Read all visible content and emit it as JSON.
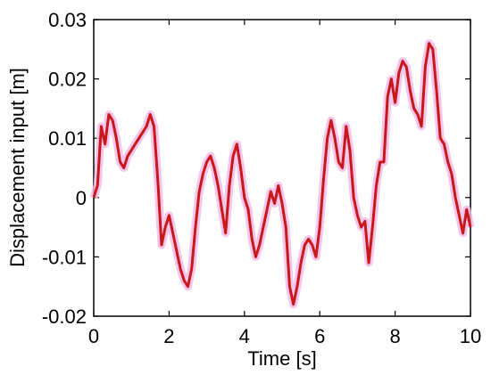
{
  "chart_data": {
    "type": "line",
    "x_label": "Time [s]",
    "y_label": "Displacement input [m]",
    "x": [
      0,
      0.1,
      0.2,
      0.3,
      0.4,
      0.5,
      0.6,
      0.7,
      0.8,
      0.9,
      1,
      1.1,
      1.2,
      1.3,
      1.4,
      1.5,
      1.6,
      1.7,
      1.8,
      1.9,
      2,
      2.1,
      2.2,
      2.3,
      2.4,
      2.5,
      2.6,
      2.7,
      2.8,
      2.9,
      3,
      3.1,
      3.2,
      3.3,
      3.4,
      3.5,
      3.6,
      3.7,
      3.8,
      3.9,
      4,
      4.1,
      4.2,
      4.3,
      4.4,
      4.5,
      4.6,
      4.7,
      4.8,
      4.9,
      5,
      5.1,
      5.2,
      5.3,
      5.4,
      5.5,
      5.6,
      5.7,
      5.8,
      5.9,
      6,
      6.1,
      6.2,
      6.3,
      6.4,
      6.5,
      6.6,
      6.7,
      6.8,
      6.9,
      7,
      7.1,
      7.2,
      7.3,
      7.4,
      7.5,
      7.6,
      7.7,
      7.8,
      7.9,
      8,
      8.1,
      8.2,
      8.3,
      8.4,
      8.5,
      8.6,
      8.7,
      8.8,
      8.9,
      9,
      9.1,
      9.2,
      9.3,
      9.4,
      9.5,
      9.6,
      9.7,
      9.8,
      9.9,
      10
    ],
    "series": [
      {
        "color": "#c8181a",
        "values": [
          0,
          0.002,
          0.012,
          0.009,
          0.014,
          0.013,
          0.01,
          0.006,
          0.005,
          0.007,
          0.008,
          0.009,
          0.01,
          0.011,
          0.012,
          0.014,
          0.012,
          0.003,
          -0.008,
          -0.005,
          -0.003,
          -0.006,
          -0.009,
          -0.012,
          -0.014,
          -0.015,
          -0.012,
          -0.005,
          0.001,
          0.004,
          0.006,
          0.007,
          0.005,
          0.002,
          -0.002,
          -0.006,
          0.002,
          0.007,
          0.009,
          0.005,
          0,
          -0.002,
          -0.007,
          -0.01,
          -0.008,
          -0.005,
          -0.002,
          0.001,
          -0.001,
          0.002,
          -0.001,
          -0.005,
          -0.015,
          -0.018,
          -0.015,
          -0.011,
          -0.008,
          -0.007,
          -0.008,
          -0.01,
          -0.005,
          0.003,
          0.01,
          0.013,
          0.01,
          0.006,
          0.005,
          0.012,
          0.008,
          0,
          -0.003,
          -0.005,
          -0.004,
          -0.011,
          -0.005,
          0.002,
          0.006,
          0.006,
          0.017,
          0.02,
          0.016,
          0.021,
          0.023,
          0.022,
          0.018,
          0.015,
          0.014,
          0.012,
          0.022,
          0.026,
          0.025,
          0.018,
          0.01,
          0.009,
          0.006,
          0.004,
          0,
          -0.003,
          -0.006,
          -0.002,
          -0.005
        ]
      }
    ],
    "xlim": [
      0,
      10
    ],
    "xticks": [
      0,
      2,
      4,
      6,
      8,
      10
    ],
    "ylim": [
      -0.02,
      0.03
    ],
    "yticks": [
      -0.02,
      -0.01,
      0,
      0.01,
      0.02,
      0.03
    ]
  }
}
